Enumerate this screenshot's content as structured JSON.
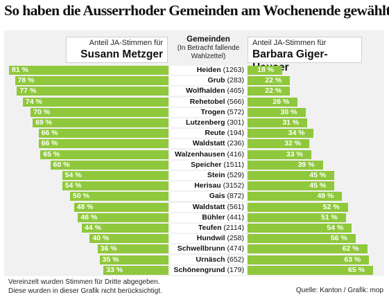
{
  "title": "So haben die Ausserrhoder Gemeinden am Wochenende gewählt",
  "header": {
    "left_small": "Anteil JA-Stimmen für",
    "left_big": "Susann Metzger",
    "mid_title": "Gemeinden",
    "mid_sub1": "(In Betracht fallende",
    "mid_sub2": "Wahlzettel)",
    "right_small": "Anteil JA-Stimmen für",
    "right_big": "Barbara Giger-Hauser"
  },
  "footer": {
    "note1": "Vereinzelt wurden Stimmen für Dritte abgegeben.",
    "note2": "Diese wurden in dieser Grafik nicht berücksichtigt.",
    "source": "Quelle: Kanton / Grafik: mop"
  },
  "colors": {
    "bar": "#8fc83c",
    "panel": "#f1f1f1"
  },
  "chart_data": {
    "type": "bar",
    "orientation": "horizontal-diverging",
    "unit": "%",
    "series": [
      {
        "name": "Susann Metzger",
        "values": [
          81,
          78,
          77,
          74,
          70,
          69,
          66,
          66,
          65,
          60,
          54,
          54,
          50,
          48,
          46,
          44,
          40,
          36,
          35,
          33
        ]
      },
      {
        "name": "Barbara Giger-Hauser",
        "values": [
          18,
          22,
          22,
          26,
          30,
          31,
          34,
          32,
          33,
          39,
          45,
          45,
          49,
          52,
          51,
          54,
          56,
          62,
          63,
          65
        ]
      }
    ],
    "categories": [
      "Heiden",
      "Grub",
      "Wolfhalden",
      "Rehetobel",
      "Trogen",
      "Lutzenberg",
      "Reute",
      "Waldstatt",
      "Walzenhausen",
      "Speicher",
      "Stein",
      "Herisau",
      "Gais",
      "Waldstatt",
      "Bühler",
      "Teufen",
      "Hundwil",
      "Schwellbrunn",
      "Urnäsch",
      "Schönengrund"
    ],
    "counts": [
      "(1263)",
      "(283)",
      "(465)",
      "(566)",
      "(572)",
      "(301)",
      "(194)",
      "(236)",
      "(416)",
      "(1511)",
      "(529)",
      "(3152)",
      "(872)",
      "(561)",
      "(441)",
      "(2114)",
      "(258)",
      "(474)",
      "(652)",
      "(179)"
    ],
    "value_labels_left": [
      "81 %",
      "78 %",
      "77 %",
      "74 %",
      "70 %",
      "69 %",
      "66 %",
      "66 %",
      "65 %",
      "60 %",
      "54 %",
      "54 %",
      "50 %",
      "48 %",
      "46 %",
      "44 %",
      "40 %",
      "36 %",
      "35 %",
      "33 %"
    ],
    "value_labels_right": [
      "18 %",
      "22 %",
      "22 %",
      "26 %",
      "30 %",
      "31 %",
      "34 %",
      "32 %",
      "33 %",
      "39 %",
      "45 %",
      "45 %",
      "49 %",
      "52 %",
      "51 %",
      "54 %",
      "56 %",
      "62 %",
      "63 %",
      "65 %"
    ]
  }
}
